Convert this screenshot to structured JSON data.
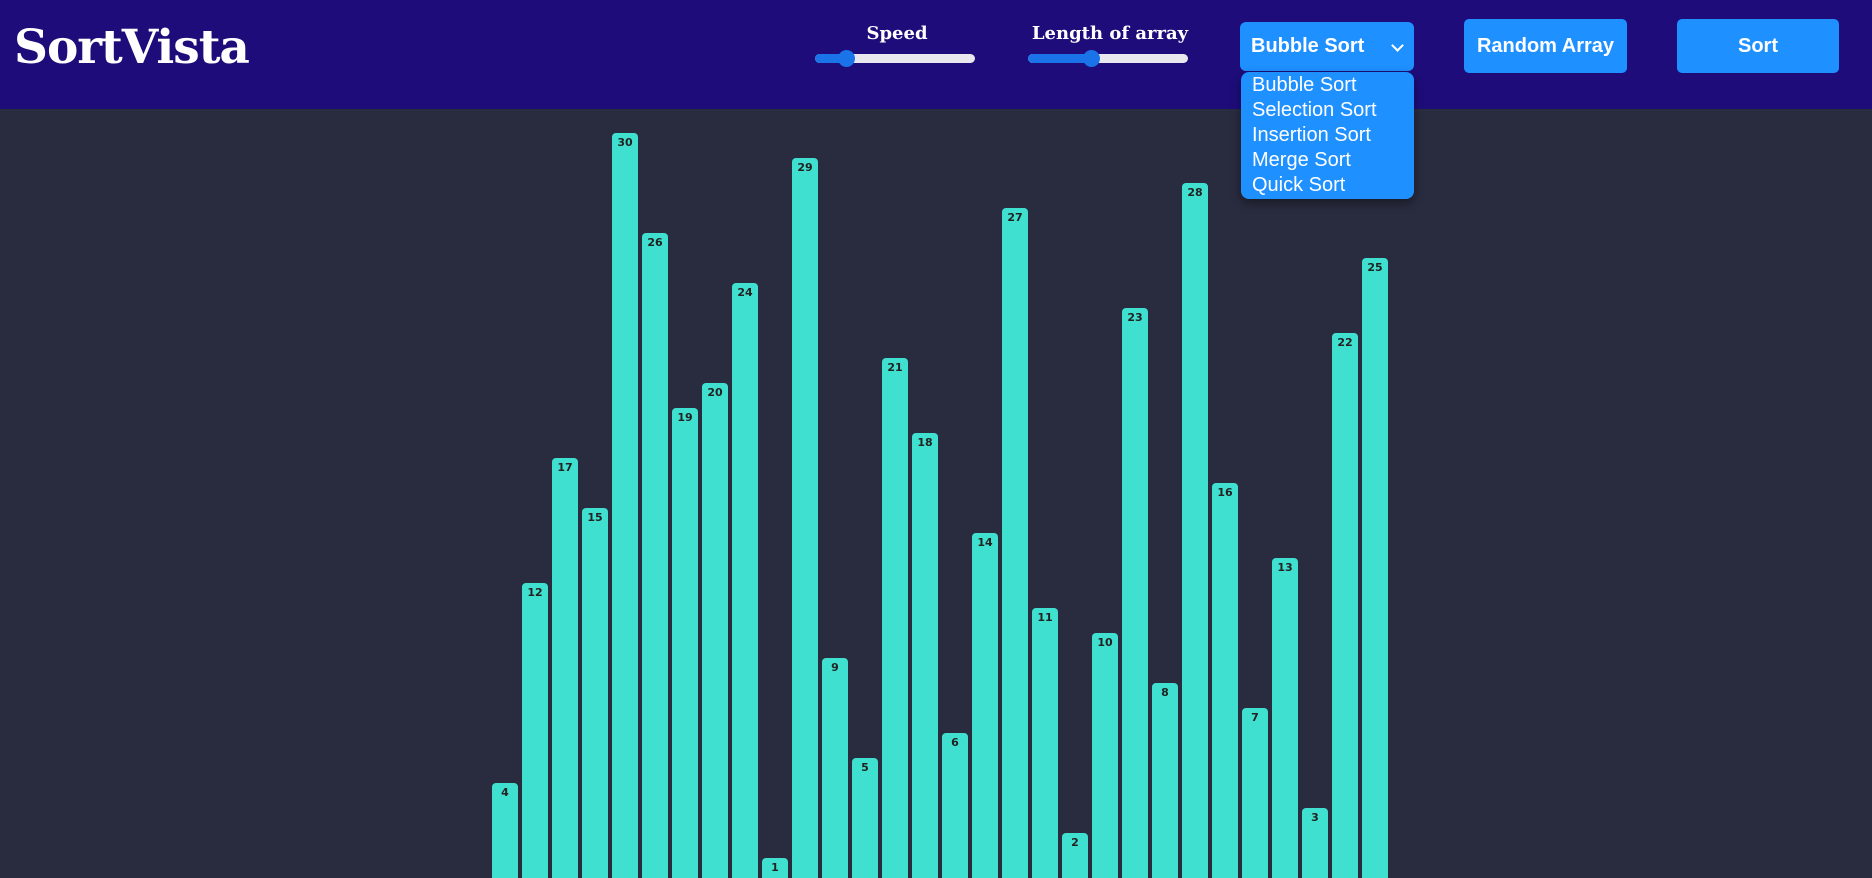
{
  "app": {
    "title": "SortVista"
  },
  "controls": {
    "speed": {
      "label": "Speed",
      "value_fraction": 0.16
    },
    "length": {
      "label": "Length of array",
      "value_fraction": 0.38
    },
    "algorithm_select": {
      "selected": "Bubble Sort",
      "options": [
        "Bubble Sort",
        "Selection Sort",
        "Insertion Sort",
        "Merge Sort",
        "Quick Sort"
      ]
    },
    "random_array_label": "Random Array",
    "sort_label": "Sort"
  },
  "colors": {
    "header": "#1e0c7a",
    "background": "#292b3f",
    "button": "#1e90ff",
    "bar": "#40e0d0",
    "slider": "#1a73e8"
  },
  "icons": {
    "select_caret": "chevron-down-icon"
  },
  "chart_data": {
    "type": "bar",
    "values": [
      4,
      12,
      17,
      15,
      30,
      26,
      19,
      20,
      24,
      1,
      29,
      9,
      5,
      21,
      18,
      6,
      14,
      27,
      11,
      2,
      10,
      23,
      8,
      28,
      16,
      7,
      13,
      3,
      22,
      25
    ],
    "ylim": [
      0,
      30
    ],
    "grid": false
  }
}
